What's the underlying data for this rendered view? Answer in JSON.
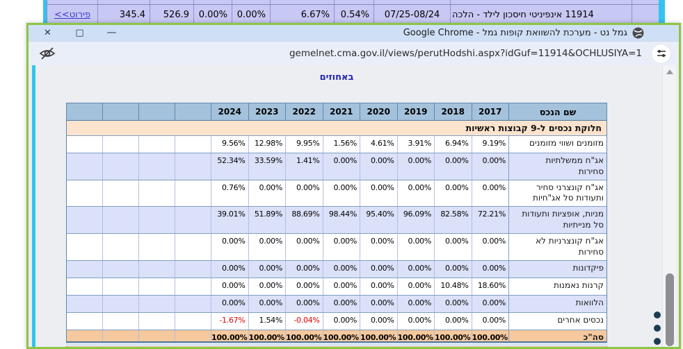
{
  "background_table": {
    "detail_link": "פירוט>>",
    "values": [
      "345.4",
      "526.9",
      "0.00%",
      "0.00%",
      "6.67%",
      "0.54%",
      "07/25-08/24"
    ],
    "fund_name": "11914 אינפיניטי חיסכון לילד - הלכה"
  },
  "window": {
    "title": "גמל נט - מערכת להשוואת קופות גמל - Google Chrome",
    "controls": {
      "close": "✕",
      "maximize": "□",
      "minimize": "—"
    },
    "url": "gemelnet.cma.gov.il/views/perutHodshi.aspx?idGuf=11914&OCHLUSIYA=1"
  },
  "page": {
    "subtitle": "באחוזים",
    "table": {
      "name_header": "שם הנכס",
      "years": [
        "2024",
        "2023",
        "2022",
        "2021",
        "2020",
        "2019",
        "2018",
        "2017"
      ],
      "section_title": "חלוקת נכסים ל-9 קבוצות ראשיות",
      "rows": [
        {
          "name": "מזומנים ושווי מזומנים",
          "values": [
            "9.56%",
            "12.98%",
            "9.95%",
            "1.56%",
            "4.61%",
            "3.91%",
            "6.94%",
            "9.19%"
          ]
        },
        {
          "name": "אג\"ח ממשלתיות\nסחירות",
          "values": [
            "52.34%",
            "33.59%",
            "1.41%",
            "0.00%",
            "0.00%",
            "0.00%",
            "0.00%",
            "0.00%"
          ]
        },
        {
          "name": "אג\"ח קונצרני סחיר\nותעודות סל אג\"חיות",
          "values": [
            "0.76%",
            "0.00%",
            "0.00%",
            "0.00%",
            "0.00%",
            "0.00%",
            "0.00%",
            "0.00%"
          ]
        },
        {
          "name": "מניות, אופציות ותעודות\nסל מנייתיות",
          "values": [
            "39.01%",
            "51.89%",
            "88.69%",
            "98.44%",
            "95.40%",
            "96.09%",
            "82.58%",
            "72.21%"
          ]
        },
        {
          "name": "אג\"ח קונצרניות לא\nסחירות",
          "values": [
            "0.00%",
            "0.00%",
            "0.00%",
            "0.00%",
            "0.00%",
            "0.00%",
            "0.00%",
            "0.00%"
          ]
        },
        {
          "name": "פיקדונות",
          "values": [
            "0.00%",
            "0.00%",
            "0.00%",
            "0.00%",
            "0.00%",
            "0.00%",
            "0.00%",
            "0.00%"
          ]
        },
        {
          "name": "קרנות נאמנות",
          "values": [
            "0.00%",
            "0.00%",
            "0.00%",
            "0.00%",
            "0.00%",
            "0.00%",
            "10.48%",
            "18.60%"
          ]
        },
        {
          "name": "הלוואות",
          "values": [
            "0.00%",
            "0.00%",
            "0.00%",
            "0.00%",
            "0.00%",
            "0.00%",
            "0.00%",
            "0.00%"
          ]
        },
        {
          "name": "נכסים אחרים",
          "values": [
            "-1.67%",
            "1.54%",
            "-0.04%",
            "0.00%",
            "0.00%",
            "0.00%",
            "0.00%",
            "0.00%"
          ]
        },
        {
          "name": "סה\"כ",
          "values": [
            "100.00%",
            "100.00%",
            "100.00%",
            "100.00%",
            "100.00%",
            "100.00%",
            "100.00%",
            "100.00%"
          ],
          "total": true
        }
      ]
    }
  },
  "colors": {
    "window_border": "#8cc641",
    "titlebar": "#cfe0f6",
    "urlbar": "#e9eef9",
    "accent_cyan": "#33c3f0",
    "header_bg": "#a5c2dc",
    "stripe_bg": "#dbe1f9",
    "section_bg": "#fce3cd",
    "total_bg": "#f5c89d",
    "strip_bg": "#c7c8f3",
    "negative": "#e00000"
  }
}
